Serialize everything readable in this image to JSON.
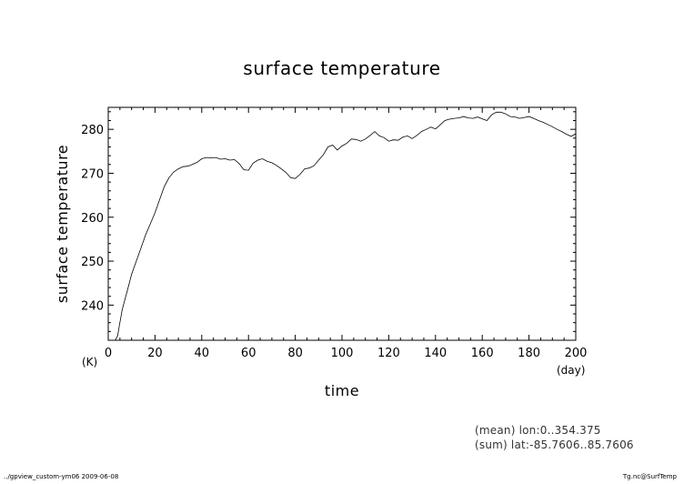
{
  "chart_data": {
    "type": "line",
    "title": "surface temperature",
    "xlabel": "time",
    "ylabel": "surface temperature",
    "x_unit": "(day)",
    "y_unit": "(K)",
    "xlim": [
      0,
      200
    ],
    "ylim": [
      232,
      285
    ],
    "xticks": [
      0,
      20,
      40,
      60,
      80,
      100,
      120,
      140,
      160,
      180,
      200
    ],
    "yticks": [
      240,
      250,
      260,
      270,
      280
    ],
    "grid": false,
    "legend": "none",
    "line_color": "#000000",
    "series": [
      {
        "x": [
          0,
          1,
          2,
          3,
          4,
          5,
          6,
          8,
          10,
          12,
          14,
          16,
          18,
          20,
          22,
          24,
          26,
          28,
          30,
          32,
          34,
          36,
          38,
          40,
          42,
          44,
          46,
          48,
          50,
          52,
          54,
          56,
          58,
          60,
          62,
          64,
          66,
          68,
          70,
          72,
          74,
          76,
          78,
          80,
          82,
          84,
          86,
          88,
          90,
          92,
          94,
          96,
          98,
          100,
          102,
          104,
          106,
          108,
          110,
          112,
          114,
          116,
          118,
          120,
          122,
          124,
          126,
          128,
          130,
          132,
          134,
          136,
          138,
          140,
          142,
          144,
          146,
          148,
          150,
          152,
          154,
          156,
          158,
          160,
          162,
          164,
          166,
          168,
          170,
          172,
          174,
          176,
          178,
          180,
          182,
          184,
          186,
          188,
          190,
          192,
          194,
          196,
          198,
          200
        ],
        "y": [
          232,
          232,
          232,
          232,
          233,
          236,
          239,
          243,
          247,
          250,
          253,
          256,
          258.5,
          261,
          264,
          267,
          269,
          270.3,
          271,
          271.5,
          271.6,
          272,
          272.5,
          273.3,
          273.6,
          273.5,
          273.6,
          273.2,
          273.3,
          273,
          273.1,
          272.2,
          270.8,
          270.7,
          272.3,
          273,
          273.3,
          272.7,
          272.4,
          271.8,
          271,
          270.2,
          269,
          268.8,
          269.7,
          271,
          271.2,
          271.7,
          273,
          274.2,
          276,
          276.4,
          275.3,
          276.2,
          276.8,
          277.8,
          277.7,
          277.3,
          277.8,
          278.6,
          279.5,
          278.5,
          278.1,
          277.3,
          277.6,
          277.5,
          278.2,
          278.5,
          277.9,
          278.6,
          279.5,
          280,
          280.5,
          280.1,
          281,
          282,
          282.3,
          282.5,
          282.6,
          282.9,
          282.6,
          282.5,
          282.8,
          282.4,
          282,
          283.3,
          283.9,
          283.9,
          283.5,
          282.9,
          282.8,
          282.5,
          282.7,
          282.9,
          282.5,
          282,
          281.6,
          281.1,
          280.6,
          280,
          279.5,
          278.9,
          278.4,
          279
        ]
      }
    ]
  },
  "footer": {
    "left": "../gpview_custom-ym06  2009-06-08",
    "right": "Tg.nc@SurfTemp"
  },
  "notes": {
    "mean": "(mean) lon:0..354.375",
    "sum": "(sum) lat:-85.7606..85.7606"
  }
}
